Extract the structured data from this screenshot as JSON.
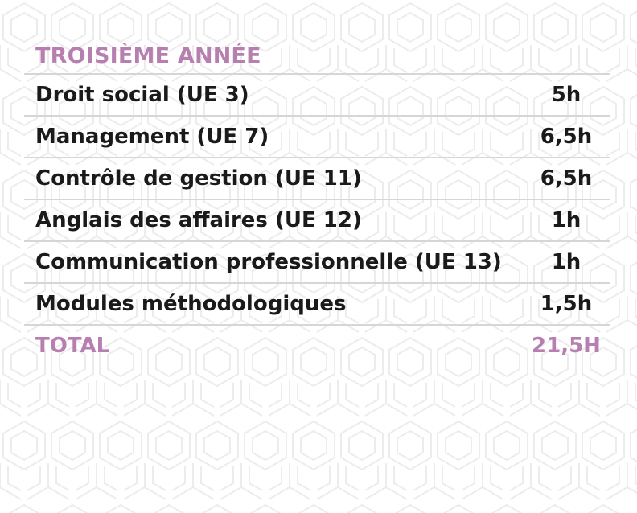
{
  "section_title": "TROISIÈME ANNÉE",
  "rows": [
    {
      "course": "Droit social (UE 3)",
      "hours": "5h"
    },
    {
      "course": "Management (UE 7)",
      "hours": "6,5h"
    },
    {
      "course": "Contrôle de gestion (UE 11)",
      "hours": "6,5h"
    },
    {
      "course": "Anglais des affaires (UE 12)",
      "hours": "1h"
    },
    {
      "course": "Communication professionnelle (UE 13)",
      "hours": "1h"
    },
    {
      "course": "Modules méthodologiques",
      "hours": "1,5h"
    }
  ],
  "total": {
    "label": "TOTAL",
    "value": "21,5H"
  },
  "colors": {
    "accent": "#b77fb0",
    "text": "#1a1a1a",
    "divider": "#d6d6d6",
    "pattern": "#ececec"
  }
}
